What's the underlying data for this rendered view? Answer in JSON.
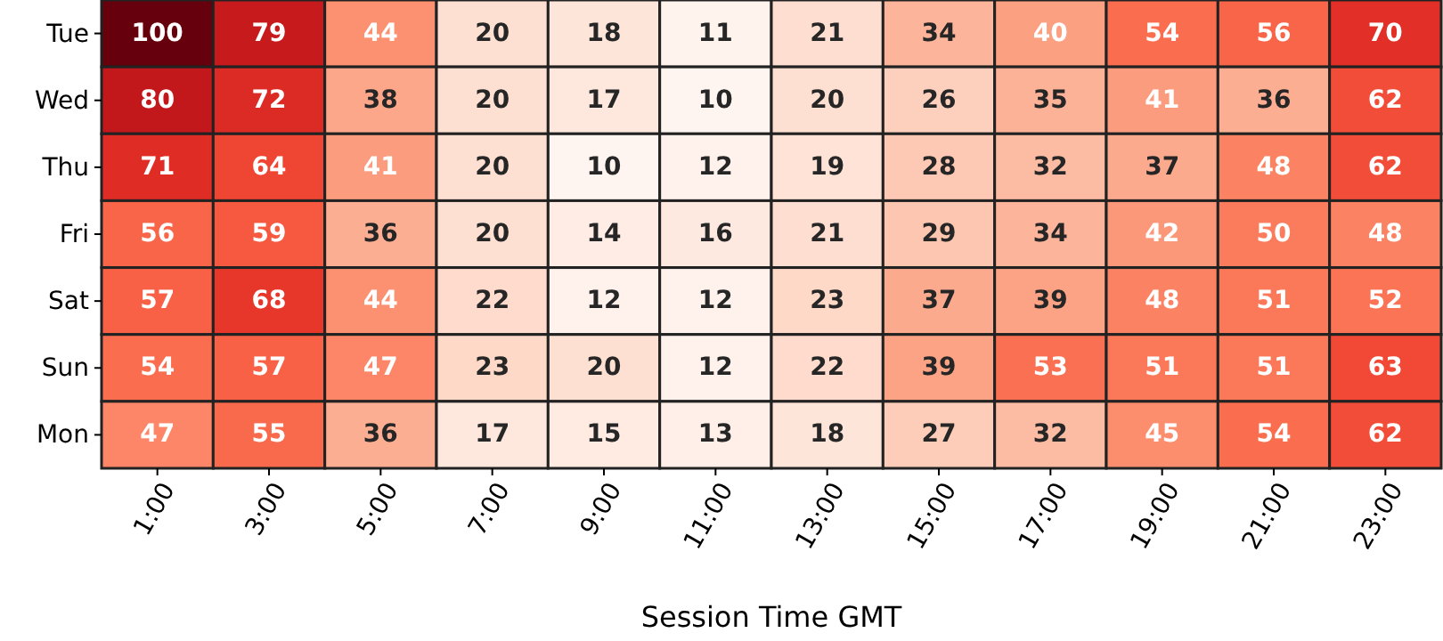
{
  "chart_data": {
    "type": "heatmap",
    "xlabel": "Session Time GMT",
    "categories": [
      "1:00",
      "3:00",
      "5:00",
      "7:00",
      "9:00",
      "11:00",
      "13:00",
      "15:00",
      "17:00",
      "19:00",
      "21:00",
      "23:00"
    ],
    "y_categories": [
      "Tue",
      "Wed",
      "Thu",
      "Fri",
      "Sat",
      "Sun",
      "Mon"
    ],
    "cells": [
      [
        100,
        79,
        44,
        20,
        18,
        11,
        21,
        34,
        40,
        54,
        56,
        70
      ],
      [
        80,
        72,
        38,
        20,
        17,
        10,
        20,
        26,
        35,
        41,
        36,
        62
      ],
      [
        71,
        64,
        41,
        20,
        10,
        12,
        19,
        28,
        32,
        37,
        48,
        62
      ],
      [
        56,
        59,
        36,
        20,
        14,
        16,
        21,
        29,
        34,
        42,
        50,
        48
      ],
      [
        57,
        68,
        44,
        22,
        12,
        12,
        23,
        37,
        39,
        48,
        51,
        52
      ],
      [
        54,
        57,
        47,
        23,
        20,
        12,
        22,
        39,
        53,
        51,
        51,
        63
      ],
      [
        47,
        55,
        36,
        17,
        15,
        13,
        18,
        27,
        32,
        45,
        54,
        62
      ]
    ],
    "data_labels": true
  }
}
